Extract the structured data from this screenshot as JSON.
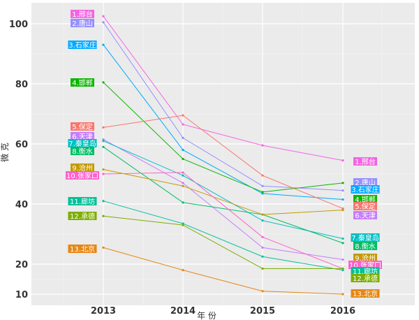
{
  "chart_data": {
    "type": "line",
    "xlabel": "年 份",
    "ylabel": "微 克",
    "x": [
      "2013",
      "2014",
      "2015",
      "2016"
    ],
    "yticks": [
      10,
      20,
      40,
      60,
      80,
      100
    ],
    "ylim": [
      6,
      109
    ],
    "grid": true,
    "legend": "none",
    "series": [
      {
        "name": "1.邢台",
        "values": [
          102.5,
          66.5,
          59.5,
          54.5
        ],
        "color": "#F564E3"
      },
      {
        "name": "2.唐山",
        "values": [
          100.5,
          62,
          46,
          44.5
        ],
        "color": "#9590FF"
      },
      {
        "name": "3.石家庄",
        "values": [
          93,
          58,
          43.5,
          41.5
        ],
        "color": "#00A9FF"
      },
      {
        "name": "4.邯郸",
        "values": [
          80.5,
          55,
          44,
          47
        ],
        "color": "#0CB702"
      },
      {
        "name": "5.保定",
        "values": [
          65.5,
          69.5,
          49.5,
          38.5
        ],
        "color": "#F8766D"
      },
      {
        "name": "6.天津",
        "values": [
          61.5,
          47,
          25.5,
          21.5
        ],
        "color": "#C77CFF"
      },
      {
        "name": "7.秦皇岛",
        "values": [
          61,
          49.5,
          34.5,
          28.5
        ],
        "color": "#00BFC4"
      },
      {
        "name": "8.衡水",
        "values": [
          59,
          40.5,
          36.5,
          27
        ],
        "color": "#00BE67"
      },
      {
        "name": "9.沧州",
        "values": [
          51.5,
          46,
          36.5,
          38
        ],
        "color": "#C49A00"
      },
      {
        "name": "10.张家口",
        "values": [
          50,
          50.5,
          29,
          18.5
        ],
        "color": "#FF61CC"
      },
      {
        "name": "11.廊坊",
        "values": [
          41,
          33.5,
          22.5,
          18
        ],
        "color": "#00C19A"
      },
      {
        "name": "12.承德",
        "values": [
          36,
          33,
          18.5,
          18.5
        ],
        "color": "#7CAE00"
      },
      {
        "name": "13.北京",
        "values": [
          25.5,
          18,
          11,
          10
        ],
        "color": "#E68613"
      }
    ]
  }
}
